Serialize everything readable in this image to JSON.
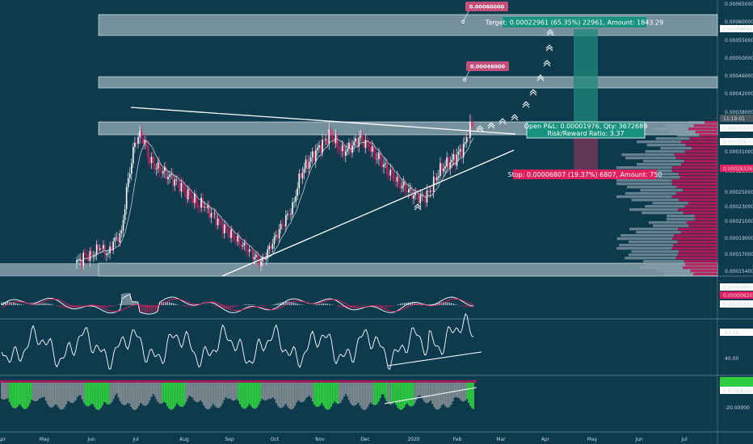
{
  "chart_data": {
    "type": "candlestick",
    "panels": {
      "main": {
        "y_axis_labels": [
          "0.00065000",
          "0.00060000",
          "0.00055000",
          "0.00050000",
          "0.00046000",
          "0.00042000",
          "0.00038000",
          "0.00035000",
          "0.00031000",
          "0.00028000",
          "0.00025000",
          "0.00023000",
          "0.00021000",
          "0.00019000",
          "0.00017000",
          "0.00015400"
        ],
        "price_tags": [
          {
            "text": "0.00058094",
            "color": "#ffffff",
            "bg": "#ffffff"
          },
          {
            "text": "11:19:01",
            "color": "#ffffff",
            "bg": "#4a5a64"
          },
          {
            "text": "0.00035133",
            "color": "#ffffff",
            "bg": "#ffffff"
          },
          {
            "text": "0.00032677",
            "color": "#ffffff",
            "bg": "#ffffff"
          },
          {
            "text": "0.00028326",
            "color": "#ffffff",
            "bg": "#e91e63"
          }
        ],
        "callouts": [
          {
            "text": "0.00060000"
          },
          {
            "text": "0.00046000"
          }
        ],
        "target_label": "Target: 0.00022961 (65.35%) 22961, Amount: 1843.29",
        "position_label_1": "Open P&L: 0.00001976, Qty: 3672689",
        "position_label_2": "Risk/Reward Ratio: 3.37",
        "stop_label": "Stop: 0.00006807 (19.37%) 6807, Amount: 750",
        "series": {
          "close": [
            0.000162,
            0.000165,
            0.00017,
            0.000168,
            0.000172,
            0.00018,
            0.000175,
            0.00017,
            0.000185,
            0.00019,
            0.000196,
            0.00025,
            0.00029,
            0.00033,
            0.00034,
            0.00033,
            0.0003,
            0.00029,
            0.000285,
            0.00028,
            0.000275,
            0.00027,
            0.000265,
            0.00026,
            0.00025,
            0.000245,
            0.00024,
            0.00023,
            0.000235,
            0.000225,
            0.00022,
            0.000213,
            0.000205,
            0.0002,
            0.000195,
            0.00019,
            0.000185,
            0.00018,
            0.000175,
            0.00017,
            0.000165,
            0.000162,
            0.00017,
            0.00018,
            0.00019,
            0.0002,
            0.00021,
            0.00022,
            0.00023,
            0.00026,
            0.00028,
            0.00029,
            0.0003,
            0.00031,
            0.00032,
            0.00033,
            0.00034,
            0.000335,
            0.00032,
            0.00031,
            0.000315,
            0.00032,
            0.00033,
            0.000335,
            0.000325,
            0.00032,
            0.000305,
            0.0003,
            0.00029,
            0.00028,
            0.000275,
            0.000265,
            0.00026,
            0.000255,
            0.00025,
            0.000245,
            0.000243,
            0.000242,
            0.000248,
            0.00026,
            0.000275,
            0.000285,
            0.00029,
            0.000295,
            0.0003,
            0.00031,
            0.00032,
            0.00035,
            0.00036
          ]
        }
      },
      "osc1": {
        "tags": [
          "0.00000962",
          "0.00000620",
          "0.00000342"
        ]
      },
      "osc2": {
        "tags": [
          "54.16"
        ],
        "axis": [
          "40.00"
        ]
      },
      "osc3": {
        "tags": [
          "-5.93028115"
        ],
        "axis": [
          "-20.00000"
        ]
      }
    },
    "x_axis_labels": [
      "Apr",
      "May",
      "Jun",
      "Jul",
      "Aug",
      "Sep",
      "Oct",
      "Nov",
      "Dec",
      "2020",
      "Feb",
      "Mar",
      "Apr",
      "May",
      "Jun",
      "Jul"
    ]
  }
}
